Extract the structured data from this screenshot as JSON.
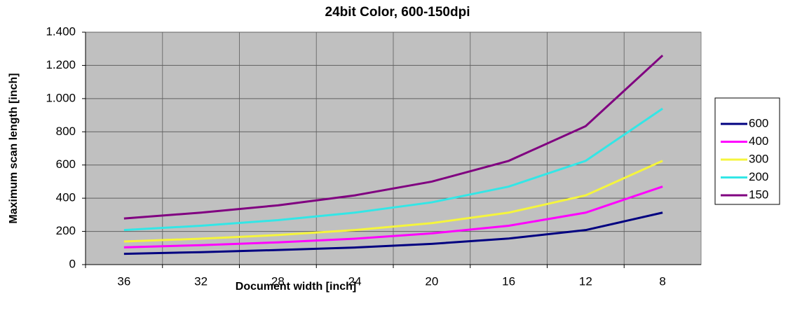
{
  "chart_data": {
    "type": "line",
    "title": "24bit Color, 600-150dpi",
    "xlabel": "Document width [inch]",
    "ylabel": "Maximum scan length [inch]",
    "categories": [
      "36",
      "32",
      "28",
      "24",
      "20",
      "16",
      "12",
      "8"
    ],
    "series": [
      {
        "name": "600",
        "color": "#000080",
        "values": [
          65,
          75,
          88,
          103,
          125,
          157,
          208,
          313
        ]
      },
      {
        "name": "400",
        "color": "#ff00ff",
        "values": [
          104,
          117,
          134,
          156,
          188,
          234,
          313,
          470
        ]
      },
      {
        "name": "300",
        "color": "#f5f53c",
        "values": [
          139,
          156,
          178,
          208,
          250,
          313,
          417,
          625
        ]
      },
      {
        "name": "200",
        "color": "#33e6e6",
        "values": [
          208,
          234,
          268,
          313,
          375,
          470,
          625,
          940
        ]
      },
      {
        "name": "150",
        "color": "#800080",
        "values": [
          278,
          313,
          357,
          417,
          500,
          625,
          834,
          1260
        ]
      }
    ],
    "ylim": [
      0,
      1400
    ],
    "yticks": [
      0,
      200,
      400,
      600,
      800,
      {
        "value": 1000,
        "label": "1.000"
      },
      {
        "value": 1200,
        "label": "1.200"
      },
      {
        "value": 1400,
        "label": "1.400"
      }
    ],
    "grid": true,
    "legend": "right"
  }
}
